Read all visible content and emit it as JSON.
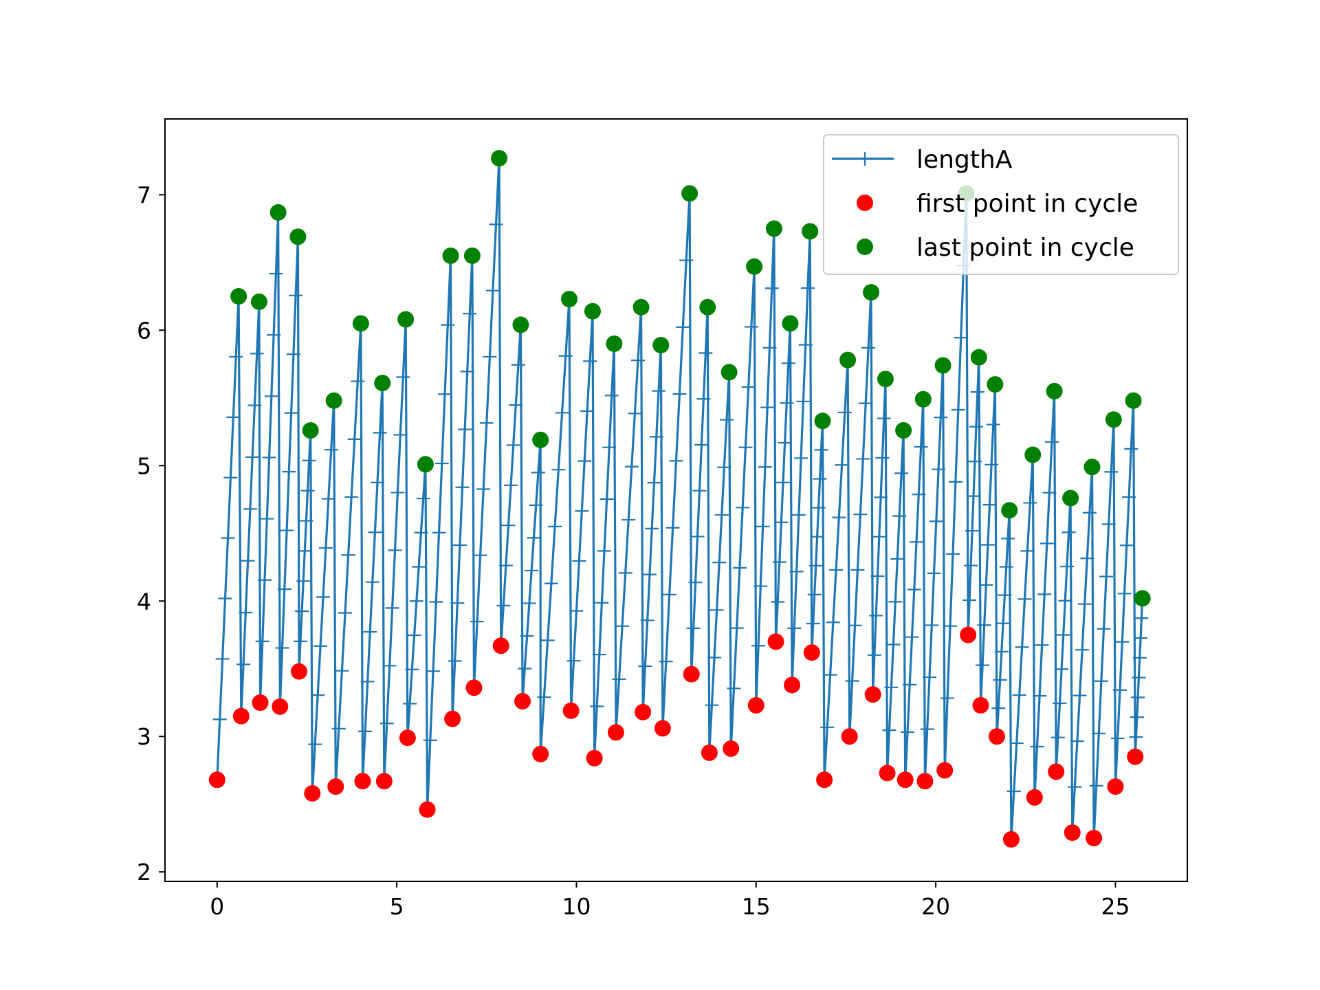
{
  "chart_data": {
    "type": "line",
    "title": "",
    "xlabel": "",
    "ylabel": "",
    "xlim": [
      -1.45,
      27.0
    ],
    "ylim": [
      1.93,
      7.56
    ],
    "xticks": [
      0,
      5,
      10,
      15,
      20,
      25
    ],
    "yticks": [
      2,
      3,
      4,
      5,
      6,
      7
    ],
    "grid": false,
    "legend_position": "upper right",
    "colors": {
      "line": "#1f77b4",
      "first": "#ff0000",
      "last": "#008000"
    },
    "legend": [
      {
        "label": "lengthA",
        "kind": "line"
      },
      {
        "label": "first point in cycle",
        "kind": "first"
      },
      {
        "label": "last point in cycle",
        "kind": "last"
      }
    ],
    "cycles": [
      {
        "x": [
          0.0,
          0.6
        ],
        "y": [
          2.68,
          6.25
        ]
      },
      {
        "x": [
          0.67,
          1.17
        ],
        "y": [
          3.15,
          6.21
        ]
      },
      {
        "x": [
          1.2,
          1.7
        ],
        "y": [
          3.25,
          6.87
        ]
      },
      {
        "x": [
          1.75,
          2.25
        ],
        "y": [
          3.22,
          6.69
        ]
      },
      {
        "x": [
          2.28,
          2.6
        ],
        "y": [
          3.48,
          5.26
        ]
      },
      {
        "x": [
          2.65,
          3.25
        ],
        "y": [
          2.58,
          5.48
        ]
      },
      {
        "x": [
          3.3,
          4.0
        ],
        "y": [
          2.63,
          6.05
        ]
      },
      {
        "x": [
          4.05,
          4.6
        ],
        "y": [
          2.67,
          5.61
        ]
      },
      {
        "x": [
          4.65,
          5.25
        ],
        "y": [
          2.67,
          6.08
        ]
      },
      {
        "x": [
          5.3,
          5.8
        ],
        "y": [
          2.99,
          5.01
        ]
      },
      {
        "x": [
          5.85,
          6.5
        ],
        "y": [
          2.46,
          6.55
        ]
      },
      {
        "x": [
          6.55,
          7.1
        ],
        "y": [
          3.13,
          6.55
        ]
      },
      {
        "x": [
          7.15,
          7.85
        ],
        "y": [
          3.36,
          7.27
        ]
      },
      {
        "x": [
          7.9,
          8.45
        ],
        "y": [
          3.67,
          6.04
        ]
      },
      {
        "x": [
          8.5,
          9.0
        ],
        "y": [
          3.26,
          5.19
        ]
      },
      {
        "x": [
          9.0,
          9.8
        ],
        "y": [
          2.87,
          6.23
        ]
      },
      {
        "x": [
          9.85,
          10.45
        ],
        "y": [
          3.19,
          6.14
        ]
      },
      {
        "x": [
          10.5,
          11.05
        ],
        "y": [
          2.84,
          5.9
        ]
      },
      {
        "x": [
          11.1,
          11.8
        ],
        "y": [
          3.03,
          6.17
        ]
      },
      {
        "x": [
          11.85,
          12.35
        ],
        "y": [
          3.18,
          5.89
        ]
      },
      {
        "x": [
          12.4,
          13.15
        ],
        "y": [
          3.06,
          7.01
        ]
      },
      {
        "x": [
          13.2,
          13.65
        ],
        "y": [
          3.46,
          6.17
        ]
      },
      {
        "x": [
          13.7,
          14.25
        ],
        "y": [
          2.88,
          5.69
        ]
      },
      {
        "x": [
          14.3,
          14.95
        ],
        "y": [
          2.91,
          6.47
        ]
      },
      {
        "x": [
          15.0,
          15.5
        ],
        "y": [
          3.23,
          6.75
        ]
      },
      {
        "x": [
          15.55,
          15.95
        ],
        "y": [
          3.7,
          6.05
        ]
      },
      {
        "x": [
          16.0,
          16.5
        ],
        "y": [
          3.38,
          6.73
        ]
      },
      {
        "x": [
          16.55,
          16.85
        ],
        "y": [
          3.62,
          5.33
        ]
      },
      {
        "x": [
          16.9,
          17.55
        ],
        "y": [
          2.68,
          5.78
        ]
      },
      {
        "x": [
          17.6,
          18.2
        ],
        "y": [
          3.0,
          6.28
        ]
      },
      {
        "x": [
          18.25,
          18.6
        ],
        "y": [
          3.31,
          5.64
        ]
      },
      {
        "x": [
          18.65,
          19.1
        ],
        "y": [
          2.73,
          5.26
        ]
      },
      {
        "x": [
          19.15,
          19.65
        ],
        "y": [
          2.68,
          5.49
        ]
      },
      {
        "x": [
          19.7,
          20.2
        ],
        "y": [
          2.67,
          5.74
        ]
      },
      {
        "x": [
          20.25,
          20.85
        ],
        "y": [
          2.75,
          7.01
        ]
      },
      {
        "x": [
          20.9,
          21.2
        ],
        "y": [
          3.75,
          5.8
        ]
      },
      {
        "x": [
          21.25,
          21.65
        ],
        "y": [
          3.23,
          5.6
        ]
      },
      {
        "x": [
          21.7,
          22.05
        ],
        "y": [
          3.0,
          4.67
        ]
      },
      {
        "x": [
          22.1,
          22.7
        ],
        "y": [
          2.24,
          5.08
        ]
      },
      {
        "x": [
          22.75,
          23.3
        ],
        "y": [
          2.55,
          5.55
        ]
      },
      {
        "x": [
          23.35,
          23.75
        ],
        "y": [
          2.74,
          4.76
        ]
      },
      {
        "x": [
          23.8,
          24.35
        ],
        "y": [
          2.29,
          4.99
        ]
      },
      {
        "x": [
          24.4,
          24.95
        ],
        "y": [
          2.25,
          5.34
        ]
      },
      {
        "x": [
          25.0,
          25.5
        ],
        "y": [
          2.63,
          5.48
        ]
      },
      {
        "x": [
          25.55,
          25.75
        ],
        "y": [
          2.85,
          4.02
        ]
      }
    ]
  }
}
